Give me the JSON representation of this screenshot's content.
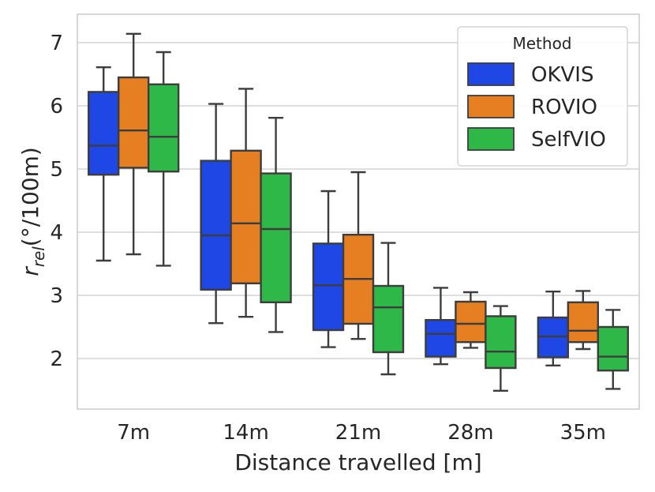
{
  "chart_data": {
    "type": "boxplot",
    "xlabel": "Distance travelled [m]",
    "ylabel": "r",
    "ylabel_subscript": "rel",
    "ylabel_units": "(°/100m)",
    "ylim": [
      1.2,
      7.45
    ],
    "yticks": [
      2,
      3,
      4,
      5,
      6,
      7
    ],
    "grid": true,
    "legend": {
      "title": "Method",
      "position": "top-right"
    },
    "categories": [
      "7m",
      "14m",
      "21m",
      "28m",
      "35m"
    ],
    "series": [
      {
        "name": "OKVIS",
        "color": "#1f47e6",
        "boxes": [
          {
            "whisker_low": 3.55,
            "q1": 4.91,
            "median": 5.37,
            "q3": 6.22,
            "whisker_high": 6.61
          },
          {
            "whisker_low": 2.56,
            "q1": 3.09,
            "median": 3.95,
            "q3": 5.13,
            "whisker_high": 6.03
          },
          {
            "whisker_low": 2.18,
            "q1": 2.45,
            "median": 3.16,
            "q3": 3.82,
            "whisker_high": 4.65
          },
          {
            "whisker_low": 1.91,
            "q1": 2.03,
            "median": 2.39,
            "q3": 2.61,
            "whisker_high": 3.12
          },
          {
            "whisker_low": 1.89,
            "q1": 2.02,
            "median": 2.35,
            "q3": 2.65,
            "whisker_high": 3.06
          }
        ]
      },
      {
        "name": "ROVIO",
        "color": "#e67e22",
        "boxes": [
          {
            "whisker_low": 3.65,
            "q1": 5.02,
            "median": 5.61,
            "q3": 6.45,
            "whisker_high": 7.14
          },
          {
            "whisker_low": 2.66,
            "q1": 3.19,
            "median": 4.14,
            "q3": 5.29,
            "whisker_high": 6.27
          },
          {
            "whisker_low": 2.31,
            "q1": 2.55,
            "median": 3.26,
            "q3": 3.96,
            "whisker_high": 4.95
          },
          {
            "whisker_low": 2.17,
            "q1": 2.26,
            "median": 2.55,
            "q3": 2.9,
            "whisker_high": 3.05
          },
          {
            "whisker_low": 2.15,
            "q1": 2.26,
            "median": 2.44,
            "q3": 2.89,
            "whisker_high": 3.07
          }
        ]
      },
      {
        "name": "SelfVIO",
        "color": "#2eb848",
        "boxes": [
          {
            "whisker_low": 3.47,
            "q1": 4.96,
            "median": 5.51,
            "q3": 6.34,
            "whisker_high": 6.85
          },
          {
            "whisker_low": 2.42,
            "q1": 2.89,
            "median": 4.05,
            "q3": 4.93,
            "whisker_high": 5.81
          },
          {
            "whisker_low": 1.75,
            "q1": 2.1,
            "median": 2.81,
            "q3": 3.15,
            "whisker_high": 3.83
          },
          {
            "whisker_low": 1.49,
            "q1": 1.85,
            "median": 2.11,
            "q3": 2.67,
            "whisker_high": 2.83
          },
          {
            "whisker_low": 1.52,
            "q1": 1.81,
            "median": 2.03,
            "q3": 2.5,
            "whisker_high": 2.77
          }
        ]
      }
    ]
  }
}
